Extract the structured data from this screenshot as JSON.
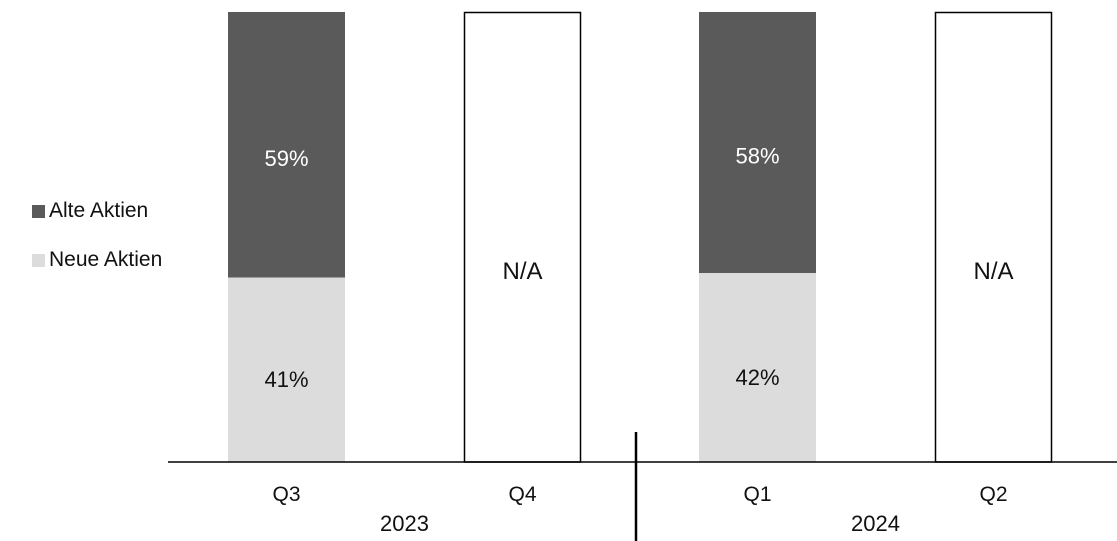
{
  "chart_data": {
    "type": "bar",
    "stacked": true,
    "percent_stacked": true,
    "categories": [
      "Q3",
      "Q4",
      "Q1",
      "Q2"
    ],
    "groups": [
      {
        "label": "2023",
        "categories": [
          "Q3",
          "Q4"
        ]
      },
      {
        "label": "2024",
        "categories": [
          "Q1",
          "Q2"
        ]
      }
    ],
    "series": [
      {
        "name": "Neue Aktien",
        "color": "#dcdcdc",
        "label_color": "#111111",
        "values": [
          41,
          null,
          42,
          null
        ]
      },
      {
        "name": "Alte Aktien",
        "color": "#5a5a5a",
        "label_color": "#ffffff",
        "values": [
          59,
          null,
          58,
          null
        ]
      }
    ],
    "value_suffix": "%",
    "missing_label": "N/A",
    "legend_order": [
      "Alte Aktien",
      "Neue Aktien"
    ],
    "legend_position": "left",
    "ylim": [
      0,
      100
    ],
    "grid": false,
    "title": "",
    "xlabel": "",
    "ylabel": ""
  }
}
